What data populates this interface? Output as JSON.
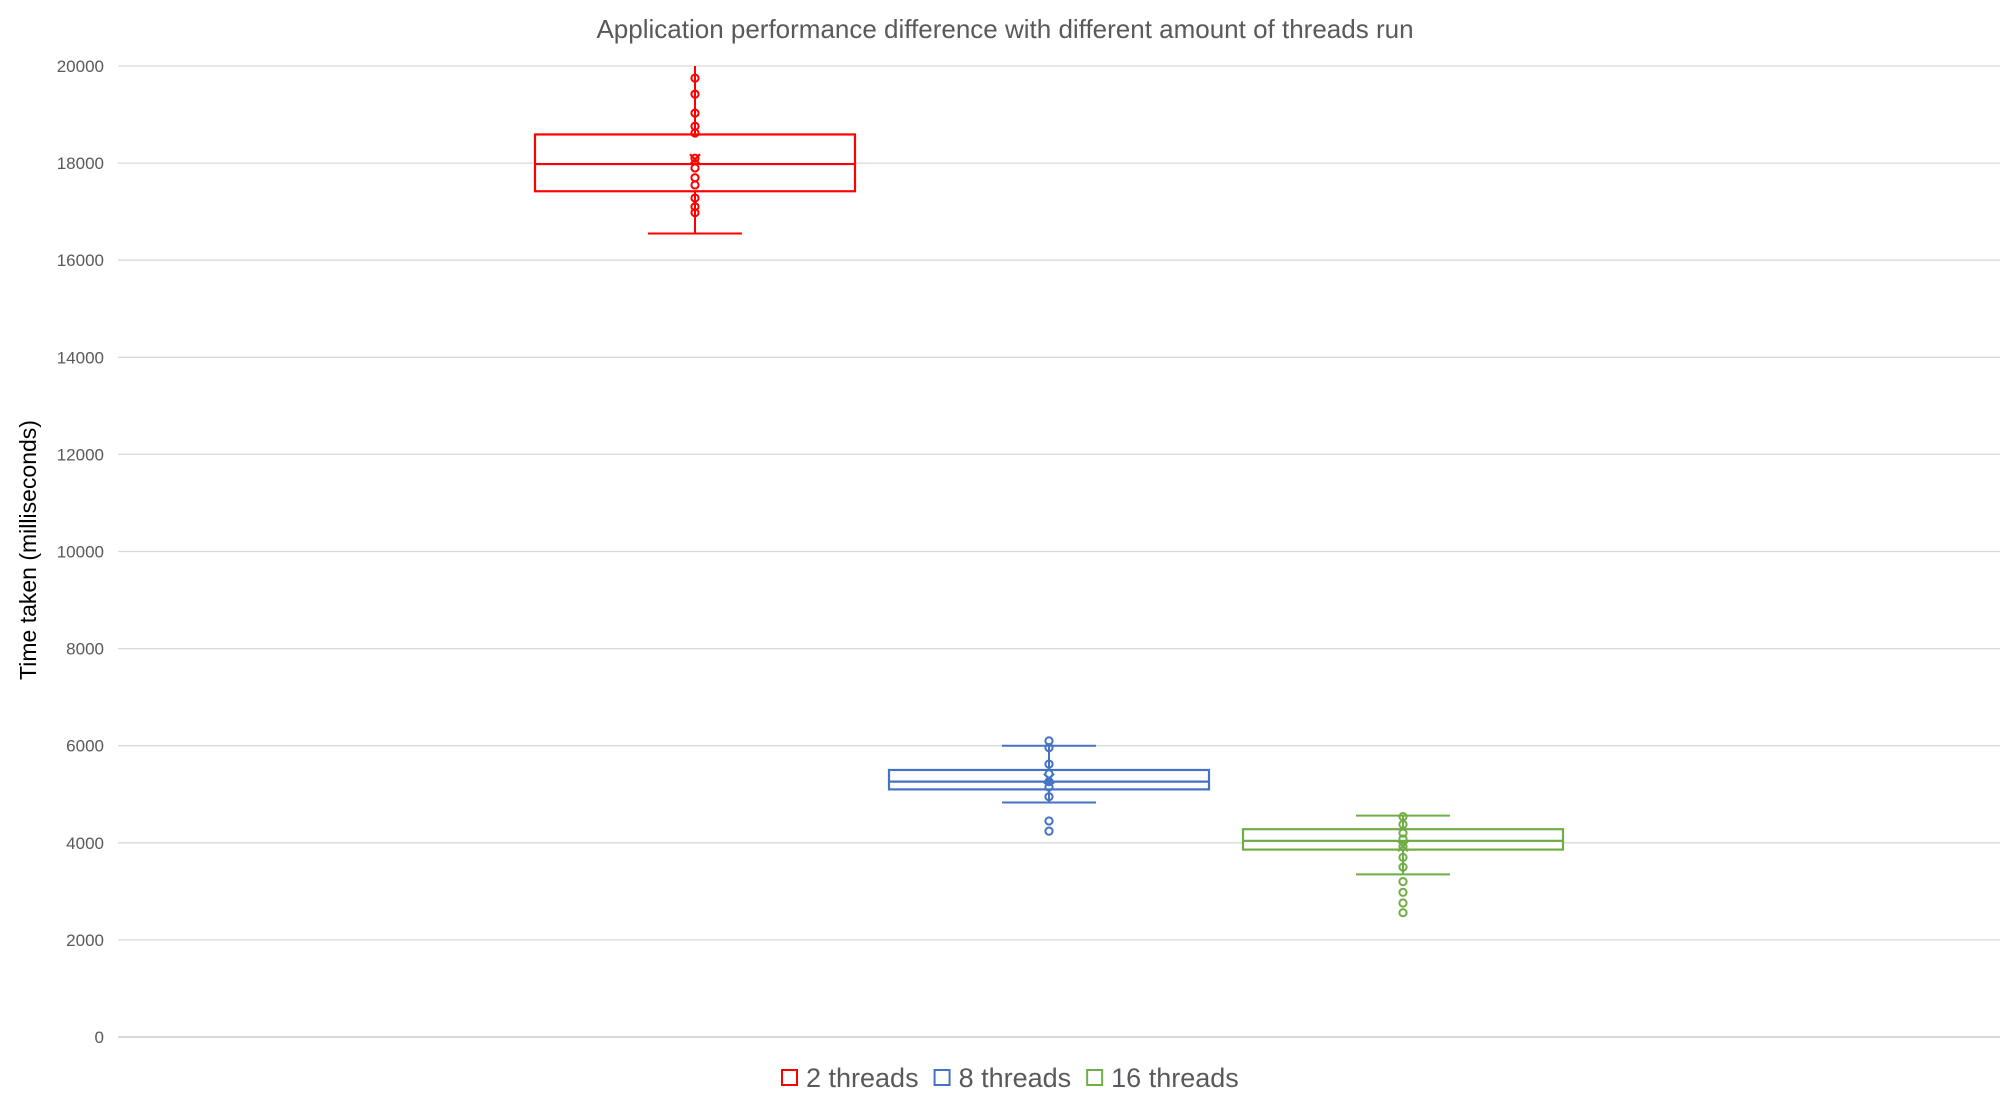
{
  "chart_data": {
    "type": "box",
    "title": "Application performance difference with different amount of threads run",
    "ylabel": "Time taken (milliseconds)",
    "xlabel": "",
    "ylim": [
      0,
      20000
    ],
    "yticks": [
      0,
      2000,
      4000,
      6000,
      8000,
      10000,
      12000,
      14000,
      16000,
      18000,
      20000
    ],
    "grid": true,
    "legend_position": "bottom",
    "series": [
      {
        "name": "2 threads",
        "color": "#ff0000",
        "whisker_low": 16550,
        "q1": 17420,
        "median": 17980,
        "q3": 18590,
        "whisker_high": 20000,
        "mean": 18080,
        "points": [
          19750,
          19420,
          19030,
          18760,
          18620,
          18100,
          17900,
          17700,
          17550,
          17280,
          17100,
          16980
        ]
      },
      {
        "name": "8 threads",
        "color": "#4472c4",
        "whisker_low": 4830,
        "q1": 5100,
        "median": 5260,
        "q3": 5500,
        "whisker_high": 6000,
        "mean": 5320,
        "points": [
          6100,
          5960,
          5620,
          5420,
          5260,
          5150,
          4950,
          4450,
          4240
        ]
      },
      {
        "name": "16 threads",
        "color": "#70ad47",
        "whisker_low": 3350,
        "q1": 3860,
        "median": 4040,
        "q3": 4280,
        "whisker_high": 4560,
        "mean": 3930,
        "points": [
          4540,
          4380,
          4200,
          4080,
          3920,
          3700,
          3500,
          3200,
          2980,
          2760,
          2560
        ]
      }
    ]
  }
}
